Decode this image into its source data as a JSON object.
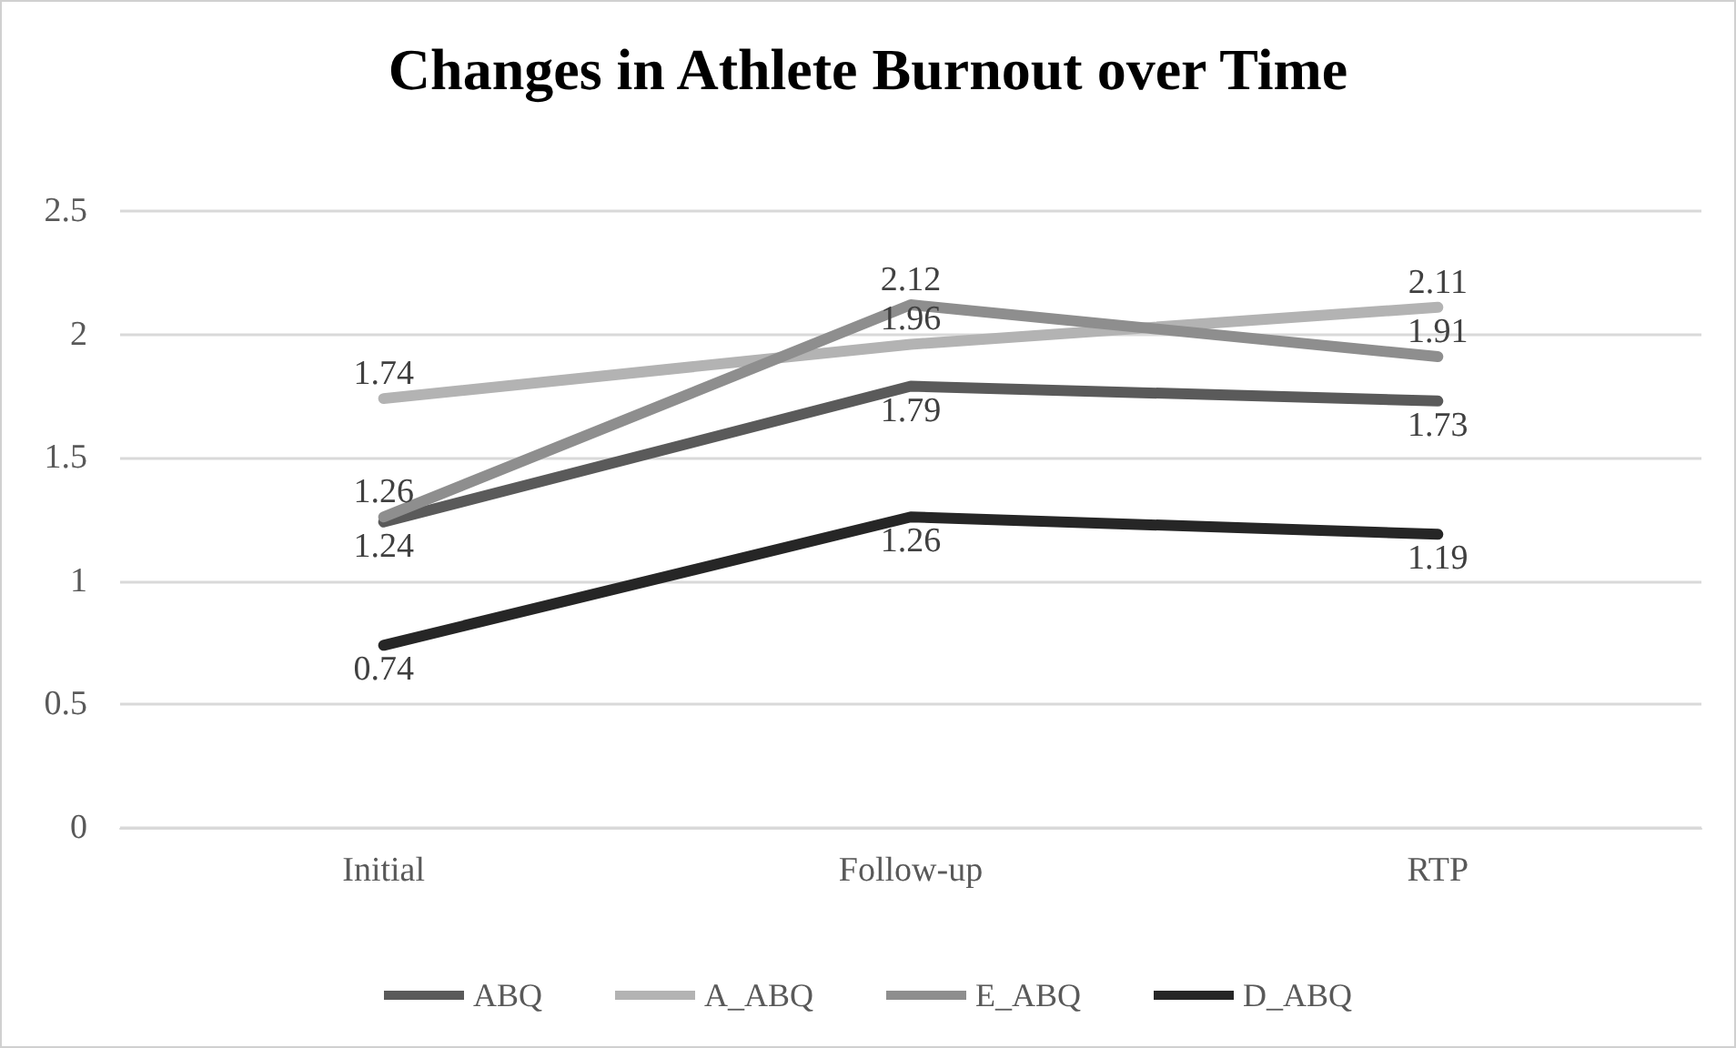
{
  "chart_data": {
    "type": "line",
    "title": "Changes in Athlete Burnout over Time",
    "categories": [
      "Initial",
      "Follow-up",
      "RTP"
    ],
    "series": [
      {
        "name": "ABQ",
        "color": "#5a5a5a",
        "values": [
          1.24,
          1.79,
          1.73
        ]
      },
      {
        "name": "A_ABQ",
        "color": "#b3b3b3",
        "values": [
          1.74,
          1.96,
          2.11
        ]
      },
      {
        "name": "E_ABQ",
        "color": "#8e8e8e",
        "values": [
          1.26,
          2.12,
          1.91
        ]
      },
      {
        "name": "D_ABQ",
        "color": "#262626",
        "values": [
          0.74,
          1.26,
          1.19
        ]
      }
    ],
    "ylim": [
      0,
      2.5
    ],
    "yticks": [
      0,
      0.5,
      1,
      1.5,
      2,
      2.5
    ],
    "grid": "y",
    "legend": "bottom",
    "data_labels": true,
    "marker": "none",
    "line_style": "solid"
  }
}
